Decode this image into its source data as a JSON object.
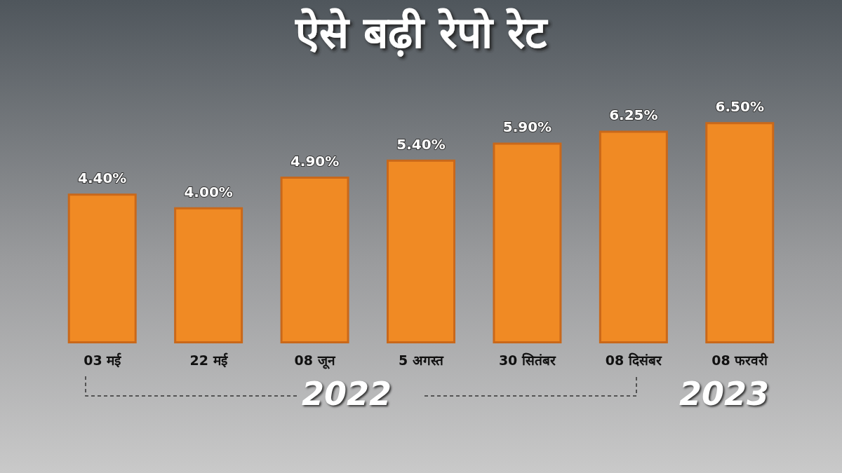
{
  "chart_data": {
    "type": "bar",
    "title": "ऐसे बढ़ी रेपो रेट",
    "categories": [
      "03 मई",
      "22 मई",
      "08 जून",
      "5 अगस्त",
      "30 सितंबर",
      "08 दिसंबर",
      "08 फरवरी"
    ],
    "values": [
      4.4,
      4.0,
      4.9,
      5.4,
      5.9,
      6.25,
      6.5
    ],
    "value_labels": [
      "4.40%",
      "4.00%",
      "4.90%",
      "5.40%",
      "5.90%",
      "6.25%",
      "6.50%"
    ],
    "color": "#f08a24",
    "annotations": [
      "2022",
      "2023"
    ]
  }
}
